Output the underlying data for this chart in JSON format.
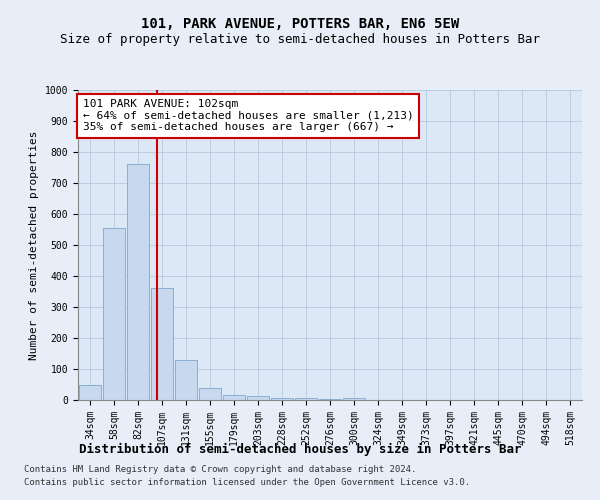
{
  "title": "101, PARK AVENUE, POTTERS BAR, EN6 5EW",
  "subtitle": "Size of property relative to semi-detached houses in Potters Bar",
  "xlabel": "Distribution of semi-detached houses by size in Potters Bar",
  "ylabel": "Number of semi-detached properties",
  "categories": [
    "34sqm",
    "58sqm",
    "82sqm",
    "107sqm",
    "131sqm",
    "155sqm",
    "179sqm",
    "203sqm",
    "228sqm",
    "252sqm",
    "276sqm",
    "300sqm",
    "324sqm",
    "349sqm",
    "373sqm",
    "397sqm",
    "421sqm",
    "445sqm",
    "470sqm",
    "494sqm",
    "518sqm"
  ],
  "values": [
    50,
    555,
    760,
    360,
    130,
    40,
    15,
    12,
    5,
    8,
    2,
    8,
    0,
    0,
    0,
    0,
    0,
    0,
    0,
    0,
    0
  ],
  "bar_color": "#c8d8ee",
  "bar_edge_color": "#7aaad0",
  "property_label": "101 PARK AVENUE: 102sqm",
  "annotation_line1": "← 64% of semi-detached houses are smaller (1,213)",
  "annotation_line2": "35% of semi-detached houses are larger (667) →",
  "vline_color": "#cc0000",
  "vline_x": 2.8,
  "ylim": [
    0,
    1000
  ],
  "footnote1": "Contains HM Land Registry data © Crown copyright and database right 2024.",
  "footnote2": "Contains public sector information licensed under the Open Government Licence v3.0.",
  "bg_color": "#e8eef8",
  "plot_bg_color": "#dce8f5",
  "grid_color": "#b0c4d8",
  "title_fontsize": 10,
  "subtitle_fontsize": 9,
  "xlabel_fontsize": 9,
  "ylabel_fontsize": 8,
  "tick_fontsize": 7,
  "annotation_fontsize": 8,
  "footnote_fontsize": 6.5
}
